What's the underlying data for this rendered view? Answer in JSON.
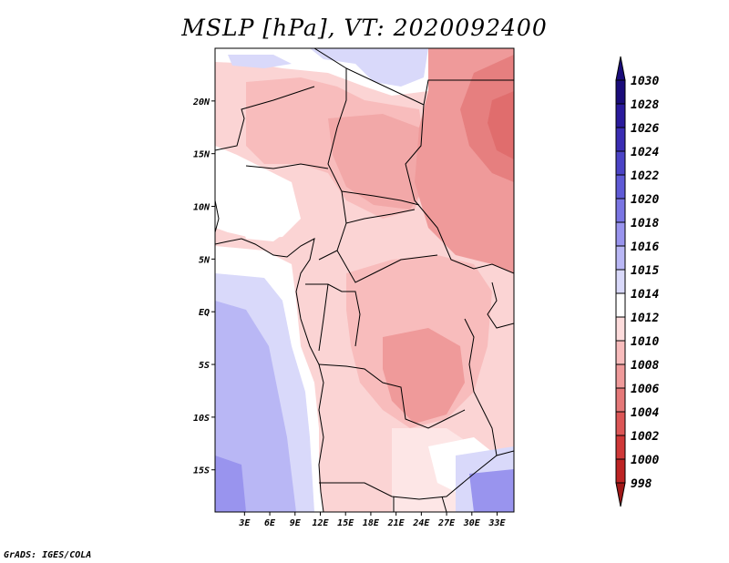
{
  "title": "MSLP [hPa], VT: 2020092400",
  "credit": "GrADS: IGES/COLA",
  "map": {
    "lon_range": [
      -0.5,
      35
    ],
    "lat_range": [
      -19,
      25
    ],
    "lon_ticks": [
      {
        "label": "3E",
        "lon": 3
      },
      {
        "label": "6E",
        "lon": 6
      },
      {
        "label": "9E",
        "lon": 9
      },
      {
        "label": "12E",
        "lon": 12
      },
      {
        "label": "15E",
        "lon": 15
      },
      {
        "label": "18E",
        "lon": 18
      },
      {
        "label": "21E",
        "lon": 21
      },
      {
        "label": "24E",
        "lon": 24
      },
      {
        "label": "27E",
        "lon": 27
      },
      {
        "label": "30E",
        "lon": 30
      },
      {
        "label": "33E",
        "lon": 33
      }
    ],
    "lat_ticks": [
      {
        "label": "20N",
        "lat": 20
      },
      {
        "label": "15N",
        "lat": 15
      },
      {
        "label": "10N",
        "lat": 10
      },
      {
        "label": "5N",
        "lat": 5
      },
      {
        "label": "EQ",
        "lat": 0
      },
      {
        "label": "5S",
        "lat": -5
      },
      {
        "label": "10S",
        "lat": -10
      },
      {
        "label": "15S",
        "lat": -15
      }
    ]
  },
  "colorbar": {
    "levels": [
      {
        "label": "1030",
        "color": "#1a0c7a"
      },
      {
        "label": "1028",
        "color": "#2a1a9c"
      },
      {
        "label": "1026",
        "color": "#3a2db3"
      },
      {
        "label": "1024",
        "color": "#4b43c6"
      },
      {
        "label": "1022",
        "color": "#5f5ad6"
      },
      {
        "label": "1020",
        "color": "#7a75e3"
      },
      {
        "label": "1018",
        "color": "#9994ee"
      },
      {
        "label": "1016",
        "color": "#b9b7f5"
      },
      {
        "label": "1015",
        "color": "#d9d9fa"
      },
      {
        "label": "1014",
        "color": "#ffffff"
      },
      {
        "label": "1012",
        "color": "#fddcdc"
      },
      {
        "label": "1010",
        "color": "#f8bcbc"
      },
      {
        "label": "1008",
        "color": "#ef9a9a"
      },
      {
        "label": "1006",
        "color": "#e57878"
      },
      {
        "label": "1004",
        "color": "#dc5656"
      },
      {
        "label": "1002",
        "color": "#cf3838"
      },
      {
        "label": "1000",
        "color": "#bd2424"
      },
      {
        "label": "998",
        "color": "#a01818"
      }
    ]
  }
}
